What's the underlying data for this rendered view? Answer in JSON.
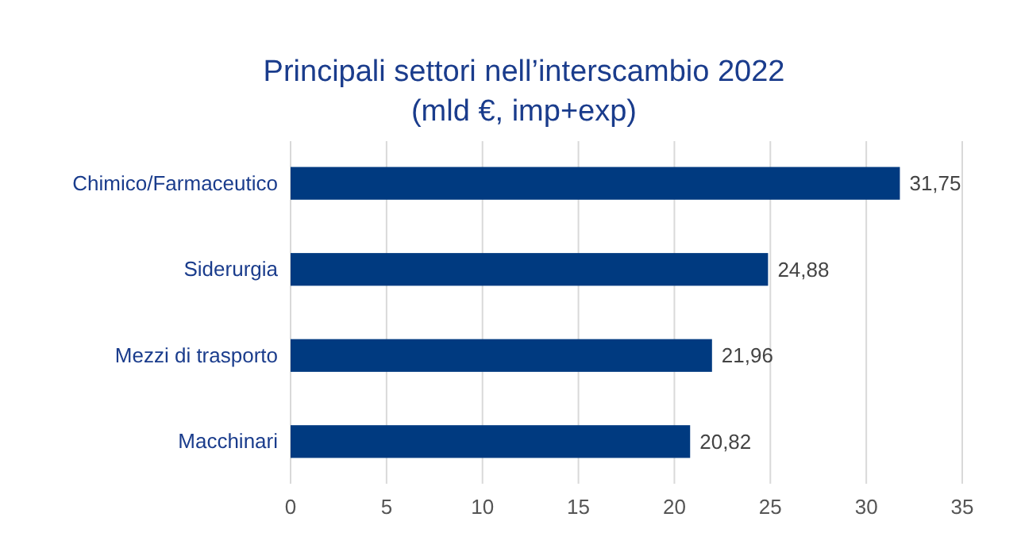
{
  "chart_data": {
    "type": "bar",
    "orientation": "horizontal",
    "title": "Principali settori nell’interscambio 2022",
    "subtitle": "(mld €, imp+exp)",
    "categories": [
      "Chimico/Farmaceutico",
      "Siderurgia",
      "Mezzi di trasporto",
      "Macchinari"
    ],
    "values": [
      31.75,
      24.88,
      21.96,
      20.82
    ],
    "value_labels": [
      "31,75",
      "24,88",
      "21,96",
      "20,82"
    ],
    "color": "#003a80",
    "xlim": [
      0,
      35
    ],
    "xticks": [
      0,
      5,
      10,
      15,
      20,
      25,
      30,
      35
    ],
    "grid": "x"
  }
}
